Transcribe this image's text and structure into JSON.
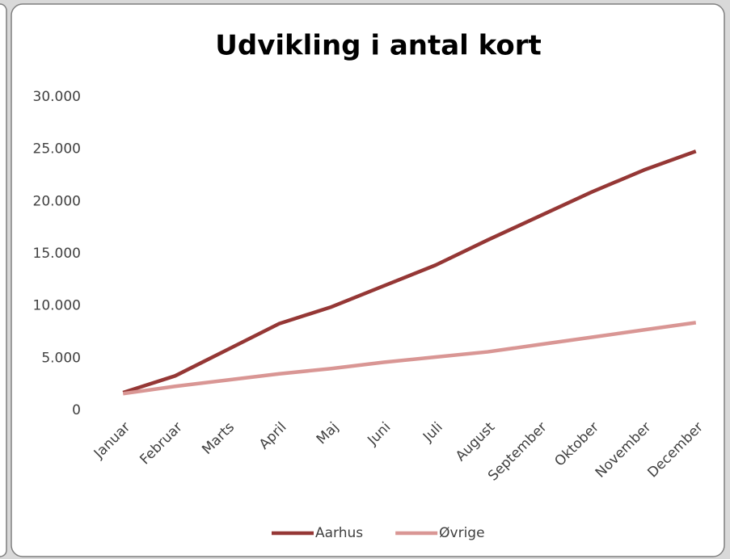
{
  "chart_data": {
    "type": "line",
    "title": "Udvikling i antal kort",
    "categories": [
      "Januar",
      "Februar",
      "Marts",
      "April",
      "Maj",
      "Juni",
      "Juli",
      "August",
      "September",
      "Oktober",
      "November",
      "December"
    ],
    "series": [
      {
        "name": "Aarhus",
        "color": "#953735",
        "values": [
          1700,
          3300,
          5800,
          8300,
          9900,
          11900,
          13900,
          16300,
          18600,
          20900,
          23000,
          24800
        ]
      },
      {
        "name": "Øvrige",
        "color": "#d99694",
        "values": [
          1600,
          2300,
          2900,
          3500,
          4000,
          4600,
          5100,
          5600,
          6300,
          7000,
          7700,
          8400
        ]
      }
    ],
    "ylim": [
      0,
      30000
    ],
    "yticks": [
      0,
      {
        "value": 5000,
        "label": "5.000"
      },
      {
        "value": 10000,
        "label": "10.000"
      },
      {
        "value": 15000,
        "label": "15.000"
      },
      {
        "value": 20000,
        "label": "20.000"
      },
      {
        "value": 25000,
        "label": "25.000"
      },
      {
        "value": 30000,
        "label": "30.000"
      }
    ],
    "grid": false,
    "legend": "bottom"
  }
}
